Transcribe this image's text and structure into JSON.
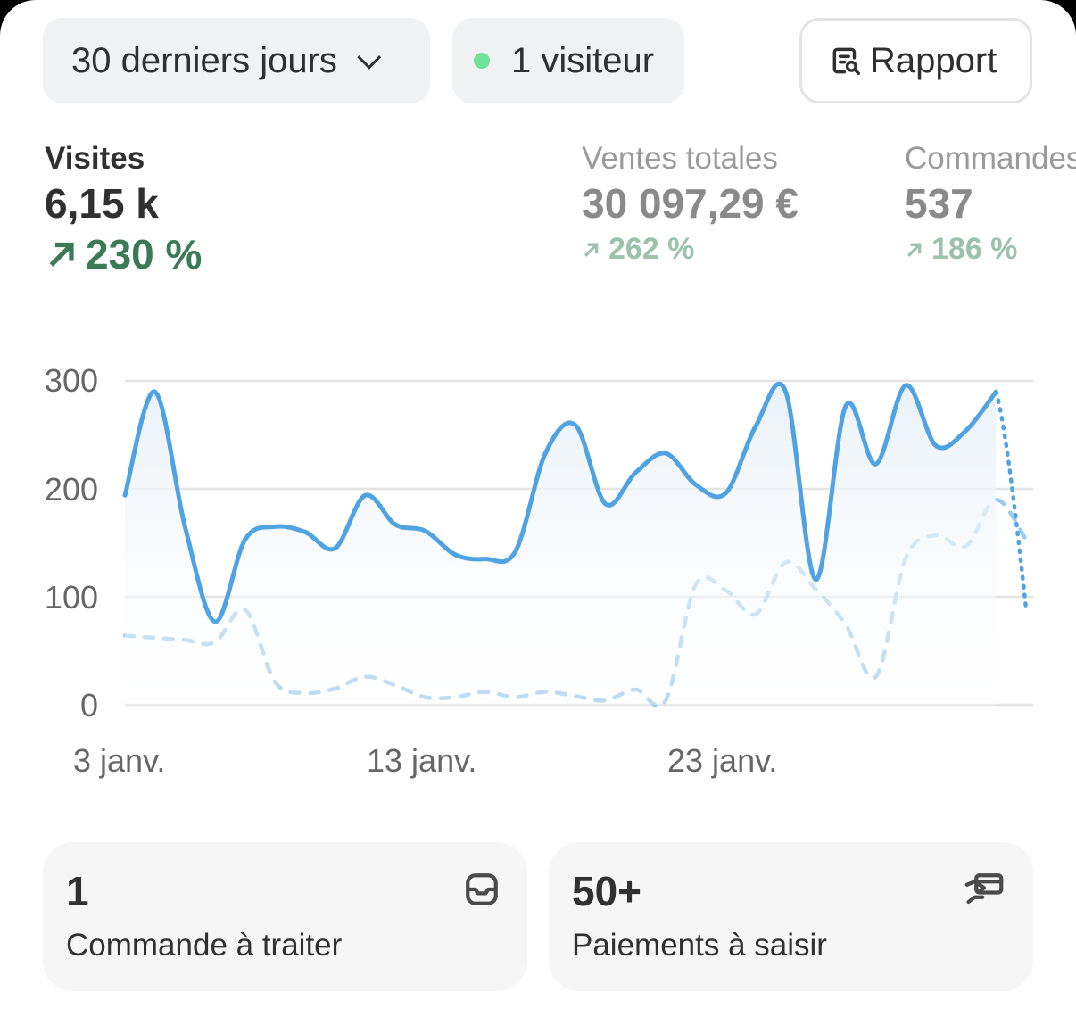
{
  "filters": {
    "range_label": "30 derniers jours",
    "visitors_label": "1 visiteur",
    "report_label": "Rapport",
    "live_dot_color": "#6fe29a"
  },
  "metrics": [
    {
      "label": "Visites",
      "value": "6,15 k",
      "change": "230 %",
      "selected": true
    },
    {
      "label": "Ventes totales",
      "value": "30 097,29 €",
      "change": "262 %",
      "selected": false
    },
    {
      "label": "Commandes",
      "value": "537",
      "change": "186 %",
      "selected": false
    }
  ],
  "chart_data": {
    "type": "line",
    "ylim": [
      0,
      300
    ],
    "yticks": [
      "300",
      "200",
      "100",
      "0"
    ],
    "xtick_labels": [
      "3 janv.",
      "13 janv.",
      "23 janv."
    ],
    "grid": true,
    "x": [
      "3 janv.",
      "4 janv.",
      "5 janv.",
      "6 janv.",
      "7 janv.",
      "8 janv.",
      "9 janv.",
      "10 janv.",
      "11 janv.",
      "12 janv.",
      "13 janv.",
      "14 janv.",
      "15 janv.",
      "16 janv.",
      "17 janv.",
      "18 janv.",
      "19 janv.",
      "20 janv.",
      "21 janv.",
      "22 janv.",
      "23 janv.",
      "24 janv.",
      "25 janv.",
      "26 janv.",
      "27 janv.",
      "28 janv.",
      "29 janv.",
      "30 janv.",
      "31 janv.",
      "1 févr.",
      "2 févr."
    ],
    "series": [
      {
        "style": "solid",
        "color": "#4fa3e3",
        "values": [
          194,
          290,
          165,
          77,
          153,
          165,
          160,
          145,
          194,
          167,
          161,
          139,
          135,
          142,
          233,
          259,
          186,
          215,
          233,
          204,
          196,
          258,
          290,
          116,
          277,
          223,
          296,
          240,
          254,
          290,
          89
        ],
        "last_segment": "dotted"
      },
      {
        "style": "dashed",
        "color": "#9ccbeb",
        "values": [
          64,
          62,
          60,
          58,
          88,
          21,
          11,
          15,
          26,
          18,
          7,
          7,
          12,
          7,
          12,
          8,
          4,
          14,
          4,
          111,
          106,
          84,
          132,
          107,
          74,
          26,
          136,
          157,
          147,
          190,
          153
        ]
      }
    ]
  },
  "cards": [
    {
      "number": "1",
      "label": "Commande à traiter",
      "icon": "inbox-icon"
    },
    {
      "number": "50+",
      "label": "Paiements à saisir",
      "icon": "hand-card-icon"
    }
  ]
}
